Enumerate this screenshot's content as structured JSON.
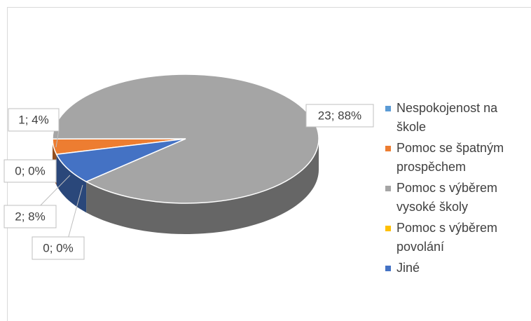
{
  "chart_data": {
    "type": "pie",
    "categories": [
      "Nespokojenost na škole",
      "Pomoc se špatným prospěchem",
      "Pomoc s výběrem vysoké školy",
      "Pomoc s výběrem povolání",
      "Jiné"
    ],
    "values": [
      0,
      1,
      23,
      0,
      2
    ],
    "value_labels": [
      "0; 0%",
      "1; 4%",
      "23; 88%",
      "0; 0%",
      "2; 8%"
    ],
    "colors": [
      "#5b9bd5",
      "#ed7d31",
      "#a5a5a5",
      "#ffc000",
      "#4472c4"
    ]
  }
}
